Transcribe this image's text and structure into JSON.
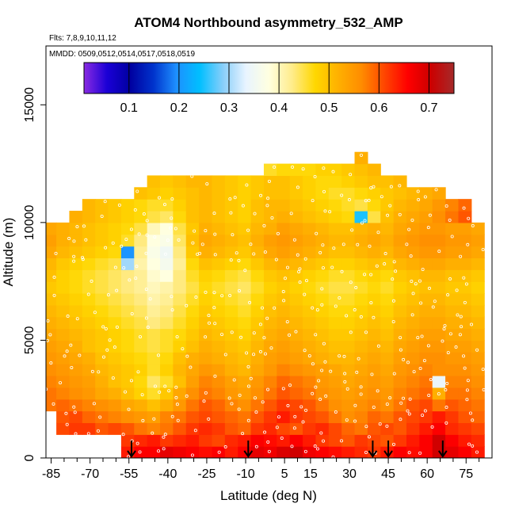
{
  "chart_data": {
    "type": "heatmap",
    "title": "ATOM4 Northbound asymmetry_532_AMP",
    "flights_label": "Flts: 7,8,9,10,11,12",
    "mmdd_label": "MMDD: 0509,0512,0514,0517,0518,0519",
    "xlabel": "Latitude (deg N)",
    "ylabel": "Altitude (m)",
    "xlim": [
      -87,
      85
    ],
    "ylim": [
      0,
      17500
    ],
    "x_ticks": [
      -85,
      -70,
      -55,
      -40,
      -25,
      -10,
      5,
      15,
      30,
      45,
      60,
      75
    ],
    "x_minor_ticks": [
      -80,
      -75,
      -65,
      -60,
      -50,
      -45,
      -35,
      -30,
      -20,
      -15,
      -5,
      0,
      10,
      20,
      25,
      35,
      40,
      50,
      55,
      65,
      70,
      80
    ],
    "y_ticks": [
      0,
      5000,
      10000,
      15000
    ],
    "colorbar": {
      "range": [
        0.01,
        0.75
      ],
      "ticks": [
        0.1,
        0.2,
        0.3,
        0.4,
        0.5,
        0.6,
        0.7
      ],
      "tick_labels": [
        "0.1",
        "0.2",
        "0.3",
        "0.4",
        "0.5",
        "0.6",
        "0.7"
      ],
      "colors": [
        "#8a2be2",
        "#1a00d6",
        "#0000a0",
        "#0033cc",
        "#1e90ff",
        "#00bfff",
        "#87cefa",
        "#e8f4ff",
        "#ffffe0",
        "#ffec8b",
        "#ffd700",
        "#ffb000",
        "#ff8c00",
        "#ff4500",
        "#ff0000",
        "#cc0000",
        "#a52a2a"
      ]
    },
    "arrows_latitude": [
      -54,
      -9,
      39,
      45,
      66
    ],
    "values_grid": {
      "lat_edges": [
        -87,
        -83,
        -78,
        -73,
        -68,
        -63,
        -58,
        -53,
        -48,
        -43,
        -38,
        -33,
        -28,
        -23,
        -18,
        -13,
        -8,
        -3,
        2,
        7,
        12,
        17,
        22,
        27,
        32,
        37,
        42,
        47,
        52,
        57,
        62,
        67,
        72,
        77,
        82
      ],
      "alt_edges": [
        0,
        500,
        1000,
        1500,
        2000,
        2500,
        3000,
        3500,
        4000,
        4500,
        5000,
        5500,
        6000,
        6500,
        7000,
        7500,
        8000,
        8500,
        9000,
        9500,
        10000,
        10500,
        11000,
        11500,
        12000,
        12500,
        13000
      ],
      "rows": [
        [
          null,
          null,
          null,
          null,
          null,
          null,
          0.64,
          0.66,
          0.66,
          0.68,
          0.67,
          0.66,
          0.65,
          0.66,
          0.64,
          0.66,
          0.68,
          0.67,
          0.69,
          0.7,
          0.67,
          0.66,
          0.65,
          0.64,
          0.63,
          0.62,
          0.64,
          0.66,
          0.65,
          0.66,
          0.7,
          0.68,
          0.66,
          0.64
        ],
        [
          null,
          null,
          null,
          null,
          null,
          null,
          0.62,
          0.63,
          0.64,
          0.62,
          0.63,
          0.64,
          0.62,
          0.61,
          0.63,
          0.64,
          0.66,
          0.65,
          0.64,
          0.66,
          0.64,
          0.62,
          0.61,
          0.6,
          0.62,
          0.61,
          0.6,
          0.62,
          0.64,
          0.66,
          0.7,
          0.66,
          0.64,
          0.63
        ],
        [
          null,
          0.61,
          0.62,
          0.62,
          0.6,
          0.61,
          0.6,
          0.58,
          0.57,
          0.58,
          0.6,
          0.62,
          0.63,
          0.62,
          0.6,
          0.59,
          0.62,
          0.63,
          0.61,
          0.6,
          0.62,
          0.63,
          0.61,
          0.59,
          0.58,
          0.6,
          0.61,
          0.6,
          0.62,
          0.64,
          0.66,
          0.63,
          0.62,
          0.61
        ],
        [
          null,
          0.6,
          0.61,
          0.59,
          0.58,
          0.57,
          0.56,
          0.55,
          0.54,
          0.57,
          0.58,
          0.6,
          0.61,
          0.6,
          0.59,
          0.58,
          0.6,
          0.62,
          0.64,
          0.62,
          0.61,
          0.6,
          0.58,
          0.56,
          0.57,
          0.59,
          0.58,
          0.6,
          0.61,
          0.62,
          0.64,
          0.62,
          0.6,
          0.59
        ],
        [
          0.58,
          0.59,
          0.58,
          0.57,
          0.56,
          0.55,
          0.53,
          0.52,
          0.5,
          0.52,
          0.55,
          0.58,
          0.6,
          0.59,
          0.57,
          0.56,
          0.58,
          0.6,
          0.62,
          0.61,
          0.6,
          0.58,
          0.56,
          0.55,
          0.56,
          0.57,
          0.56,
          0.58,
          0.6,
          0.61,
          0.58,
          0.6,
          0.59,
          0.58
        ],
        [
          0.58,
          0.57,
          0.56,
          0.55,
          0.53,
          0.52,
          0.5,
          0.48,
          0.46,
          0.49,
          0.53,
          0.56,
          0.58,
          0.57,
          0.55,
          0.54,
          0.56,
          0.58,
          0.6,
          0.59,
          0.58,
          0.56,
          0.55,
          0.54,
          0.55,
          0.56,
          0.55,
          0.57,
          0.58,
          0.59,
          0.52,
          0.58,
          0.58,
          0.57
        ],
        [
          0.57,
          0.56,
          0.55,
          0.54,
          0.52,
          0.5,
          0.49,
          0.47,
          0.44,
          0.46,
          0.5,
          0.54,
          0.57,
          0.56,
          0.54,
          0.53,
          0.55,
          0.57,
          0.59,
          0.58,
          0.57,
          0.55,
          0.54,
          0.53,
          0.54,
          0.55,
          0.54,
          0.56,
          0.57,
          0.58,
          0.34,
          0.57,
          0.57,
          0.56
        ],
        [
          0.56,
          0.55,
          0.54,
          0.53,
          0.51,
          0.5,
          0.49,
          0.48,
          0.46,
          0.48,
          0.51,
          0.53,
          0.55,
          0.54,
          0.52,
          0.51,
          0.53,
          0.55,
          0.57,
          0.56,
          0.55,
          0.54,
          0.53,
          0.52,
          0.53,
          0.54,
          0.53,
          0.55,
          0.56,
          0.57,
          0.56,
          0.56,
          0.56,
          0.55
        ],
        [
          0.55,
          0.54,
          0.53,
          0.52,
          0.5,
          0.49,
          0.48,
          0.47,
          0.46,
          0.47,
          0.5,
          0.52,
          0.53,
          0.52,
          0.51,
          0.5,
          0.52,
          0.54,
          0.55,
          0.54,
          0.53,
          0.52,
          0.51,
          0.51,
          0.52,
          0.53,
          0.52,
          0.54,
          0.55,
          0.56,
          0.56,
          0.55,
          0.55,
          0.54
        ],
        [
          0.54,
          0.53,
          0.52,
          0.5,
          0.49,
          0.48,
          0.47,
          0.46,
          0.45,
          0.46,
          0.48,
          0.5,
          0.52,
          0.51,
          0.5,
          0.49,
          0.51,
          0.53,
          0.54,
          0.53,
          0.52,
          0.51,
          0.5,
          0.5,
          0.51,
          0.52,
          0.51,
          0.53,
          0.54,
          0.55,
          0.55,
          0.54,
          0.54,
          0.53
        ],
        [
          0.53,
          0.52,
          0.51,
          0.5,
          0.49,
          0.48,
          0.47,
          0.46,
          0.45,
          0.46,
          0.47,
          0.49,
          0.51,
          0.5,
          0.49,
          0.48,
          0.5,
          0.52,
          0.53,
          0.52,
          0.51,
          0.5,
          0.49,
          0.49,
          0.5,
          0.51,
          0.5,
          0.52,
          0.53,
          0.54,
          0.54,
          0.53,
          0.53,
          0.52
        ],
        [
          0.52,
          0.51,
          0.5,
          0.49,
          0.48,
          0.47,
          0.46,
          0.45,
          0.43,
          0.44,
          0.46,
          0.48,
          0.5,
          0.49,
          0.48,
          0.47,
          0.49,
          0.51,
          0.52,
          0.51,
          0.5,
          0.49,
          0.48,
          0.48,
          0.49,
          0.5,
          0.49,
          0.51,
          0.52,
          0.53,
          0.53,
          0.52,
          0.52,
          0.51
        ],
        [
          0.51,
          0.5,
          0.49,
          0.48,
          0.47,
          0.46,
          0.45,
          0.44,
          0.42,
          0.43,
          0.45,
          0.47,
          0.49,
          0.48,
          0.47,
          0.46,
          0.48,
          0.5,
          0.51,
          0.5,
          0.49,
          0.48,
          0.47,
          0.47,
          0.48,
          0.49,
          0.48,
          0.5,
          0.51,
          0.52,
          0.52,
          0.51,
          0.51,
          0.5
        ],
        [
          0.5,
          0.49,
          0.48,
          0.47,
          0.46,
          0.45,
          0.44,
          0.43,
          0.41,
          0.42,
          0.44,
          0.46,
          0.48,
          0.47,
          0.46,
          0.45,
          0.47,
          0.49,
          0.5,
          0.49,
          0.48,
          0.47,
          0.46,
          0.46,
          0.47,
          0.48,
          0.47,
          0.49,
          0.5,
          0.51,
          0.51,
          0.5,
          0.5,
          0.49
        ],
        [
          0.49,
          0.48,
          0.47,
          0.46,
          0.45,
          0.44,
          0.43,
          0.42,
          0.4,
          0.41,
          0.43,
          0.45,
          0.47,
          0.46,
          0.45,
          0.44,
          0.46,
          0.48,
          0.49,
          0.48,
          0.47,
          0.46,
          0.45,
          0.45,
          0.46,
          0.47,
          0.46,
          0.48,
          0.49,
          0.5,
          0.5,
          0.49,
          0.49,
          0.48
        ],
        [
          0.5,
          0.48,
          0.47,
          0.46,
          0.45,
          0.44,
          0.43,
          0.42,
          0.39,
          0.38,
          0.43,
          0.46,
          0.48,
          0.47,
          0.46,
          0.45,
          0.47,
          0.49,
          0.5,
          0.49,
          0.48,
          0.47,
          0.46,
          0.46,
          0.47,
          0.48,
          0.47,
          0.49,
          0.5,
          0.51,
          0.51,
          0.5,
          0.5,
          0.49
        ],
        [
          0.51,
          0.49,
          0.48,
          0.47,
          0.46,
          0.45,
          0.3,
          0.41,
          0.38,
          0.36,
          0.42,
          0.47,
          0.5,
          0.49,
          0.48,
          0.47,
          0.49,
          0.51,
          0.52,
          0.51,
          0.5,
          0.49,
          0.48,
          0.48,
          0.49,
          0.5,
          0.49,
          0.51,
          0.52,
          0.53,
          0.53,
          0.52,
          0.52,
          0.51
        ],
        [
          0.53,
          0.51,
          0.5,
          0.49,
          0.48,
          0.47,
          0.2,
          0.42,
          0.37,
          0.35,
          0.43,
          0.49,
          0.52,
          0.51,
          0.5,
          0.49,
          0.51,
          0.53,
          0.54,
          0.53,
          0.52,
          0.51,
          0.5,
          0.5,
          0.51,
          0.52,
          0.51,
          0.53,
          0.54,
          0.55,
          0.55,
          0.54,
          0.54,
          0.53
        ],
        [
          0.54,
          0.52,
          0.51,
          0.5,
          0.49,
          0.48,
          0.46,
          0.43,
          0.38,
          0.37,
          0.44,
          0.5,
          0.53,
          0.52,
          0.51,
          0.5,
          0.52,
          0.54,
          0.55,
          0.54,
          0.53,
          0.52,
          0.51,
          0.51,
          0.52,
          0.53,
          0.52,
          0.54,
          0.55,
          0.56,
          0.56,
          0.55,
          0.55,
          0.54
        ],
        [
          0.53,
          0.52,
          0.51,
          0.5,
          0.49,
          0.48,
          0.47,
          0.45,
          0.4,
          0.38,
          0.45,
          0.49,
          0.52,
          0.51,
          0.5,
          0.49,
          0.51,
          0.52,
          0.54,
          0.53,
          0.52,
          0.51,
          0.5,
          0.5,
          0.51,
          0.52,
          0.51,
          0.53,
          0.54,
          0.55,
          0.55,
          0.54,
          0.54,
          0.53
        ],
        [
          null,
          null,
          0.52,
          0.51,
          0.5,
          0.49,
          0.48,
          0.47,
          0.45,
          0.44,
          0.47,
          0.5,
          0.51,
          0.5,
          0.49,
          0.48,
          0.5,
          0.51,
          0.52,
          0.51,
          0.5,
          0.49,
          0.48,
          0.47,
          0.25,
          0.45,
          0.5,
          0.52,
          0.53,
          0.54,
          0.56,
          0.58,
          0.6,
          null
        ],
        [
          null,
          null,
          null,
          0.51,
          0.5,
          0.49,
          0.48,
          0.47,
          0.46,
          0.46,
          0.48,
          0.5,
          0.51,
          0.5,
          0.49,
          0.48,
          0.5,
          0.51,
          0.51,
          0.5,
          0.49,
          0.48,
          0.47,
          0.46,
          0.45,
          0.47,
          0.49,
          0.51,
          0.52,
          0.53,
          0.55,
          0.57,
          0.59,
          null
        ],
        [
          null,
          null,
          null,
          null,
          null,
          null,
          null,
          0.5,
          0.49,
          0.48,
          0.49,
          0.5,
          0.51,
          0.5,
          0.49,
          0.48,
          0.49,
          0.5,
          0.5,
          0.49,
          0.48,
          0.47,
          0.46,
          0.46,
          0.47,
          0.48,
          0.49,
          0.5,
          0.51,
          0.52,
          0.53,
          null,
          null,
          null
        ],
        [
          null,
          null,
          null,
          null,
          null,
          null,
          null,
          null,
          0.5,
          0.49,
          0.5,
          0.51,
          0.51,
          0.5,
          0.49,
          0.48,
          0.49,
          0.5,
          0.5,
          0.49,
          0.48,
          0.47,
          0.47,
          0.48,
          0.49,
          0.5,
          0.5,
          0.51,
          null,
          null,
          null,
          null,
          null,
          null
        ],
        [
          null,
          null,
          null,
          null,
          null,
          null,
          null,
          null,
          null,
          null,
          null,
          null,
          null,
          null,
          null,
          null,
          null,
          0.46,
          0.47,
          0.47,
          0.47,
          0.48,
          0.48,
          0.49,
          0.5,
          0.51,
          null,
          null,
          null,
          null,
          null,
          null,
          null,
          null
        ],
        [
          null,
          null,
          null,
          null,
          null,
          null,
          null,
          null,
          null,
          null,
          null,
          null,
          null,
          null,
          null,
          null,
          null,
          null,
          null,
          null,
          null,
          null,
          null,
          null,
          0.52,
          null,
          null,
          null,
          null,
          null,
          null,
          null,
          null,
          null
        ]
      ]
    }
  }
}
